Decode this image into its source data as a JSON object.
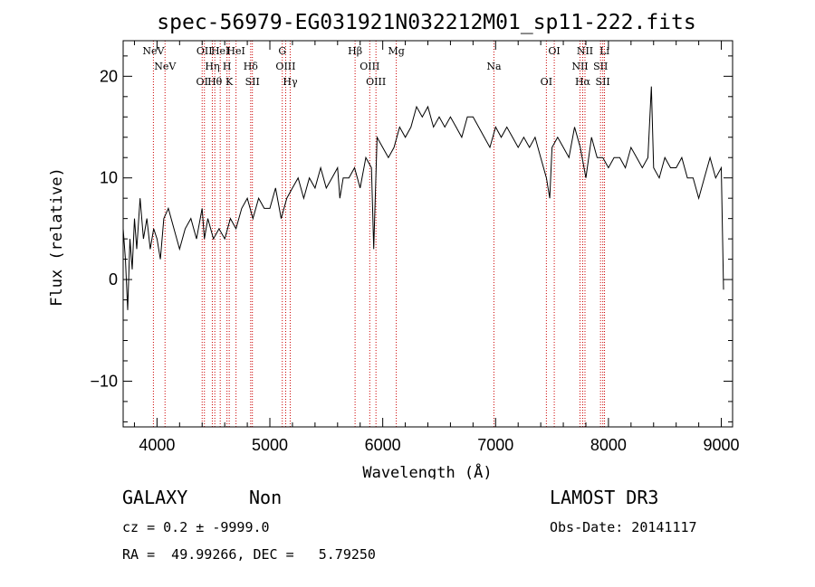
{
  "chart_data": {
    "type": "line",
    "title": "spec-56979-EG031921N032212M01_sp11-222.fits",
    "xlabel": "Wavelength (Å)",
    "ylabel": "Flux (relative)",
    "xlim": [
      3700,
      9100
    ],
    "ylim": [
      -14.5,
      23.5
    ],
    "xticks": [
      4000,
      5000,
      6000,
      7000,
      8000,
      9000
    ],
    "yticks": [
      -10,
      0,
      10,
      20
    ],
    "xtick_labels": [
      "4000",
      "5000",
      "6000",
      "7000",
      "8000",
      "9000"
    ],
    "ytick_labels": [
      "−10",
      "0",
      "10",
      "20"
    ],
    "series": [
      {
        "name": "flux",
        "x": [
          3700,
          3720,
          3740,
          3760,
          3780,
          3800,
          3820,
          3850,
          3880,
          3910,
          3940,
          3970,
          4000,
          4030,
          4060,
          4100,
          4150,
          4200,
          4250,
          4300,
          4350,
          4400,
          4420,
          4450,
          4500,
          4550,
          4600,
          4650,
          4700,
          4750,
          4800,
          4850,
          4900,
          4950,
          5000,
          5050,
          5100,
          5150,
          5200,
          5250,
          5300,
          5350,
          5400,
          5450,
          5500,
          5550,
          5600,
          5620,
          5650,
          5700,
          5750,
          5800,
          5850,
          5900,
          5920,
          5950,
          6000,
          6050,
          6100,
          6150,
          6200,
          6250,
          6300,
          6350,
          6400,
          6450,
          6500,
          6550,
          6600,
          6650,
          6700,
          6750,
          6800,
          6850,
          6900,
          6950,
          7000,
          7050,
          7100,
          7150,
          7200,
          7250,
          7300,
          7350,
          7400,
          7450,
          7480,
          7500,
          7550,
          7600,
          7650,
          7700,
          7750,
          7800,
          7850,
          7900,
          7950,
          8000,
          8050,
          8100,
          8150,
          8200,
          8250,
          8300,
          8350,
          8380,
          8400,
          8450,
          8500,
          8550,
          8600,
          8650,
          8700,
          8750,
          8800,
          8850,
          8900,
          8950,
          9000,
          9020
        ],
        "values": [
          5,
          2,
          -3,
          4,
          1,
          6,
          3,
          8,
          4,
          6,
          3,
          5,
          4,
          2,
          6,
          7,
          5,
          3,
          5,
          6,
          4,
          7,
          4,
          6,
          4,
          5,
          4,
          6,
          5,
          7,
          8,
          6,
          8,
          7,
          7,
          9,
          6,
          8,
          9,
          10,
          8,
          10,
          9,
          11,
          9,
          10,
          11,
          8,
          10,
          10,
          11,
          9,
          12,
          11,
          3,
          14,
          13,
          12,
          13,
          15,
          14,
          15,
          17,
          16,
          17,
          15,
          16,
          15,
          16,
          15,
          14,
          16,
          16,
          15,
          14,
          13,
          15,
          14,
          15,
          14,
          13,
          14,
          13,
          14,
          12,
          10,
          8,
          13,
          14,
          13,
          12,
          15,
          13,
          10,
          14,
          12,
          12,
          11,
          12,
          12,
          11,
          13,
          12,
          11,
          12,
          19,
          11,
          10,
          12,
          11,
          11,
          12,
          10,
          10,
          8,
          10,
          12,
          10,
          11,
          -1
        ]
      }
    ],
    "lines": [
      {
        "wl": 3968,
        "label": "NeV"
      },
      {
        "wl": 4071,
        "label": "NeV"
      },
      {
        "wl": 4400,
        "label": "OI"
      },
      {
        "wl": 4420,
        "label": "OII"
      },
      {
        "wl": 4490,
        "label": "Hη"
      },
      {
        "wl": 4512,
        "label": "Hθ"
      },
      {
        "wl": 4560,
        "label": "HeI"
      },
      {
        "wl": 4620,
        "label": "H"
      },
      {
        "wl": 4640,
        "label": "K"
      },
      {
        "wl": 4700,
        "label": "HeI"
      },
      {
        "wl": 4830,
        "label": "Hδ"
      },
      {
        "wl": 4845,
        "label": "SII"
      },
      {
        "wl": 5110,
        "label": "G"
      },
      {
        "wl": 5140,
        "label": "OIII"
      },
      {
        "wl": 5180,
        "label": "Hγ"
      },
      {
        "wl": 5755,
        "label": "Hβ"
      },
      {
        "wl": 5885,
        "label": "OIII"
      },
      {
        "wl": 5940,
        "label": "OIII"
      },
      {
        "wl": 6120,
        "label": "Mg"
      },
      {
        "wl": 6985,
        "label": "Na"
      },
      {
        "wl": 7450,
        "label": "OI"
      },
      {
        "wl": 7520,
        "label": "OI"
      },
      {
        "wl": 7748,
        "label": "NII"
      },
      {
        "wl": 7772,
        "label": "Hα"
      },
      {
        "wl": 7792,
        "label": "NII"
      },
      {
        "wl": 7930,
        "label": "SII"
      },
      {
        "wl": 7950,
        "label": "SII"
      },
      {
        "wl": 7965,
        "label": "Li"
      }
    ],
    "line_color": "#cc0000"
  },
  "info": {
    "class_label": "GALAXY",
    "subclass_label": "Non",
    "survey_label": "LAMOST DR3",
    "cz_text": "cz = 0.2 ± -9999.0",
    "obs_date_text": "Obs-Date: 20141117",
    "radec_text": "RA =  49.99266, DEC =   5.79250"
  }
}
